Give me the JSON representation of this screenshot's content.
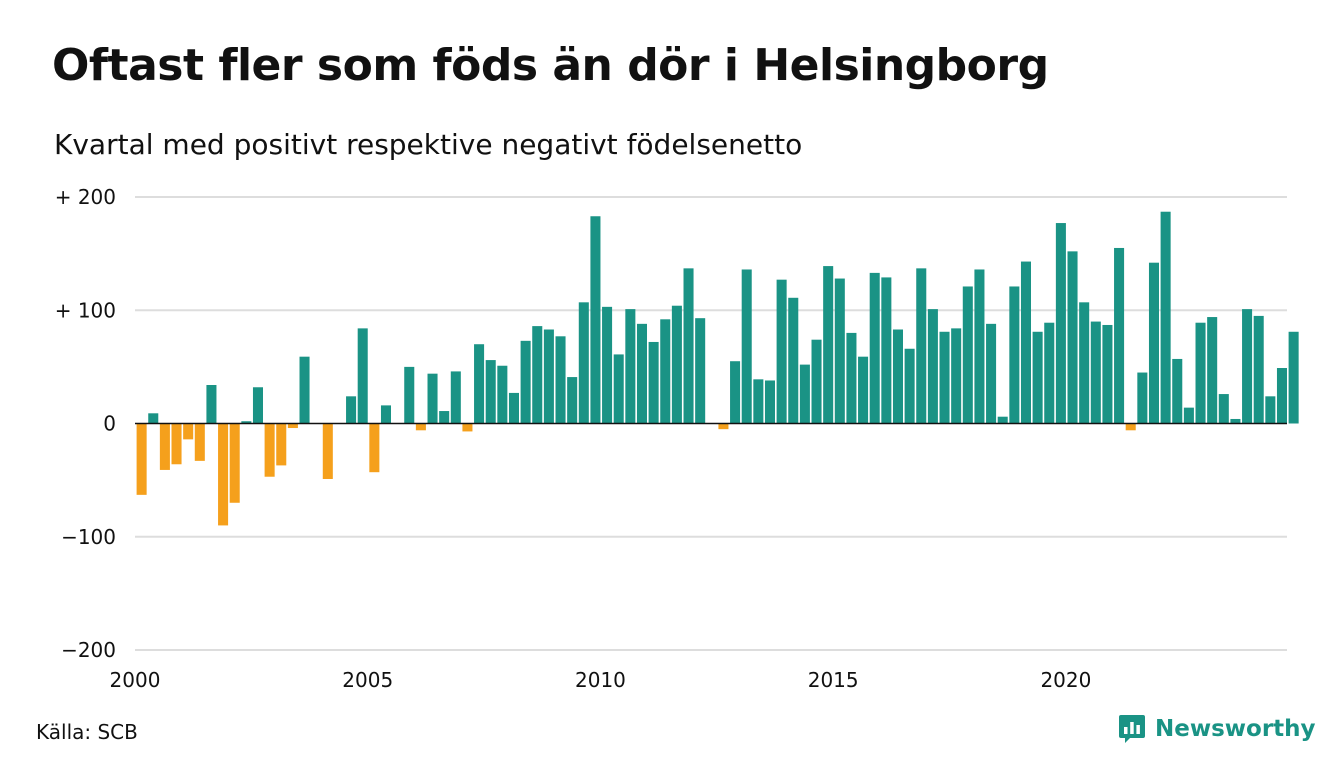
{
  "title": "Oftast fler som föds än dör i Helsingborg",
  "subtitle": "Kvartal med positivt respektive negativt födelsenetto",
  "source": "Källa: SCB",
  "logo": {
    "text": "Newsworthy",
    "icon": "newsworthy-chart-icon"
  },
  "colors": {
    "positive": "#1a9385",
    "negative": "#f5a01c",
    "grid": "#dddddd",
    "axis": "#111111",
    "logo": "#1a9385"
  },
  "chart_data": {
    "type": "bar",
    "ylim": [
      -200,
      200
    ],
    "yticks": [
      -200,
      -100,
      0,
      100,
      200
    ],
    "ytick_labels": [
      "−200",
      "−100",
      "0",
      "+ 100",
      "+ 200"
    ],
    "xticks": [
      "2000",
      "2005",
      "2010",
      "2015",
      "2020"
    ],
    "xlim": [
      2000,
      2024.75
    ],
    "grid": true,
    "legend": "none",
    "series": [
      {
        "start": "2000 Q1",
        "frequency": "quarterly",
        "values": [
          -63,
          9,
          -41,
          -36,
          -14,
          -33,
          34,
          -90,
          -70,
          2,
          32,
          -47,
          -37,
          -4,
          59,
          0,
          -49,
          0,
          24,
          84,
          -43,
          16,
          0,
          50,
          -6,
          44,
          11,
          46,
          -7,
          70,
          56,
          51,
          27,
          73,
          86,
          83,
          77,
          41,
          107,
          183,
          103,
          61,
          101,
          88,
          72,
          92,
          104,
          137,
          93,
          0,
          -5,
          55,
          136,
          39,
          38,
          127,
          111,
          52,
          74,
          139,
          128,
          80,
          59,
          133,
          129,
          83,
          66,
          137,
          101,
          81,
          84,
          121,
          136,
          88,
          6,
          121,
          143,
          81,
          89,
          177,
          152,
          107,
          90,
          87,
          155,
          -6,
          45,
          142,
          187,
          57,
          14,
          89,
          94,
          26,
          4,
          101,
          95,
          24,
          49,
          81
        ]
      }
    ]
  }
}
